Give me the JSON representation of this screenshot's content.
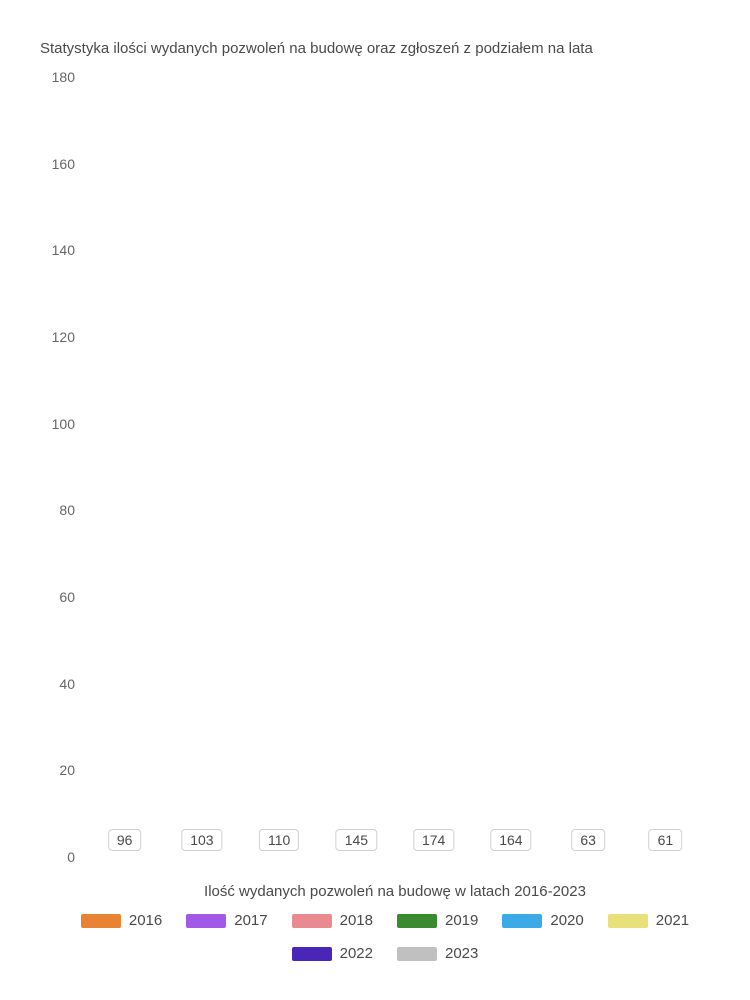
{
  "chart": {
    "type": "bar",
    "title": "Statystyka ilości wydanych pozwoleń na budowę oraz zgłoszeń z podziałem na lata",
    "xlabel": "Ilość wydanych pozwoleń na budowę w latach 2016-2023",
    "ylim": [
      0,
      180
    ],
    "ytick_step": 20,
    "title_fontsize": 15,
    "label_fontsize": 15,
    "tick_fontsize": 14,
    "background_color": "#ffffff",
    "text_color": "#4a4a4a",
    "label_box_bg": "#ffffff",
    "label_box_border": "#d0d0d0",
    "bar_width": 0.88,
    "series": [
      {
        "year": "2016",
        "value": 96,
        "color": "#e88334"
      },
      {
        "year": "2017",
        "value": 103,
        "color": "#a259e8"
      },
      {
        "year": "2018",
        "value": 110,
        "color": "#e88a8f"
      },
      {
        "year": "2019",
        "value": 145,
        "color": "#3a8a2f"
      },
      {
        "year": "2020",
        "value": 174,
        "color": "#3daae8"
      },
      {
        "year": "2021",
        "value": 164,
        "color": "#e8e07a"
      },
      {
        "year": "2022",
        "value": 63,
        "color": "#4a26b8"
      },
      {
        "year": "2023",
        "value": 61,
        "color": "#c0c0c0"
      }
    ],
    "yticks": [
      {
        "value": 0,
        "label": "0"
      },
      {
        "value": 20,
        "label": "20"
      },
      {
        "value": 40,
        "label": "40"
      },
      {
        "value": 60,
        "label": "60"
      },
      {
        "value": 80,
        "label": "80"
      },
      {
        "value": 100,
        "label": "100"
      },
      {
        "value": 120,
        "label": "120"
      },
      {
        "value": 140,
        "label": "140"
      },
      {
        "value": 160,
        "label": "160"
      },
      {
        "value": 180,
        "label": "180"
      }
    ]
  }
}
